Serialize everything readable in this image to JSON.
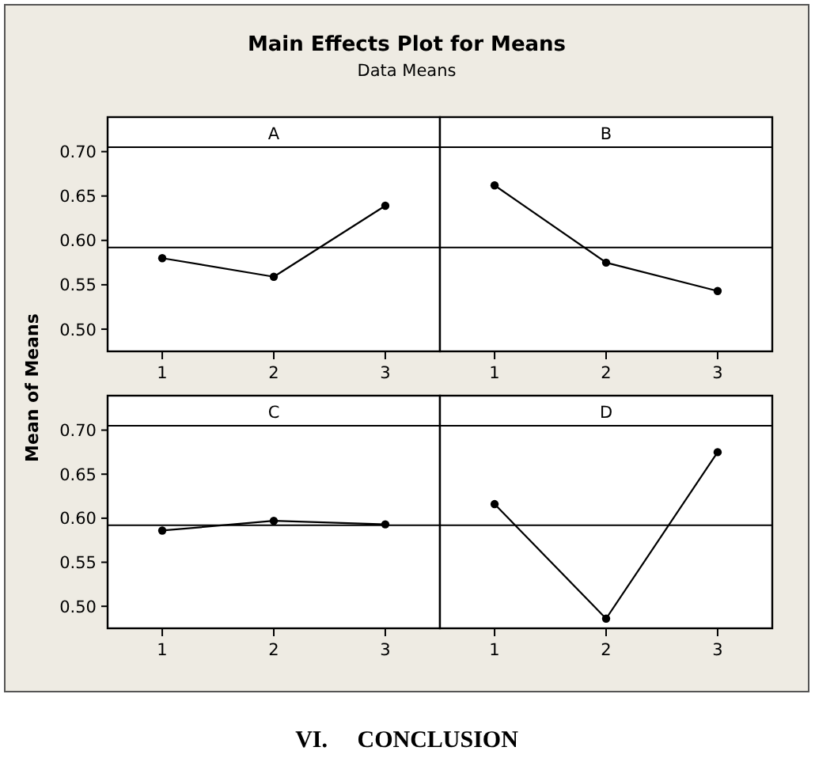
{
  "chart_data": [
    {
      "type": "other",
      "title": "Main Effects Plot for Means",
      "subtitle": "Data Means",
      "annotations": [
        "VI.     CONCLUSION"
      ]
    },
    {
      "type": "line",
      "title": "A",
      "ylabel": "Mean of Means",
      "categories": [
        "1",
        "2",
        "3"
      ],
      "values": [
        0.58,
        0.559,
        0.639
      ],
      "color": "#000000",
      "ylim": [
        0.475,
        0.705
      ],
      "yticks": [
        {
          "value": 0.5,
          "label": "0.50"
        },
        {
          "value": 0.55,
          "label": "0.55"
        },
        {
          "value": 0.6,
          "label": "0.60"
        },
        {
          "value": 0.65,
          "label": "0.65"
        },
        {
          "value": 0.7,
          "label": "0.70"
        }
      ],
      "ref_lines": [
        {
          "axis": "y",
          "value": 0.592,
          "color": "#000000"
        }
      ],
      "marker": "circle",
      "line_style": "solid"
    },
    {
      "type": "line",
      "title": "B",
      "categories": [
        "1",
        "2",
        "3"
      ],
      "values": [
        0.662,
        0.575,
        0.543
      ],
      "color": "#000000",
      "ylim": [
        0.475,
        0.705
      ],
      "ref_lines": [
        {
          "axis": "y",
          "value": 0.592,
          "color": "#000000"
        }
      ],
      "marker": "circle",
      "line_style": "solid",
      "tick_labels": "x"
    },
    {
      "type": "line",
      "title": "C",
      "categories": [
        "1",
        "2",
        "3"
      ],
      "values": [
        0.586,
        0.597,
        0.593
      ],
      "color": "#000000",
      "ylim": [
        0.475,
        0.705
      ],
      "yticks": [
        {
          "value": 0.5,
          "label": "0.50"
        },
        {
          "value": 0.55,
          "label": "0.55"
        },
        {
          "value": 0.6,
          "label": "0.60"
        },
        {
          "value": 0.65,
          "label": "0.65"
        },
        {
          "value": 0.7,
          "label": "0.70"
        }
      ],
      "ref_lines": [
        {
          "axis": "y",
          "value": 0.592,
          "color": "#000000"
        }
      ],
      "marker": "circle",
      "line_style": "solid"
    },
    {
      "type": "line",
      "title": "D",
      "categories": [
        "1",
        "2",
        "3"
      ],
      "values": [
        0.616,
        0.486,
        0.675
      ],
      "color": "#000000",
      "ylim": [
        0.475,
        0.705
      ],
      "ref_lines": [
        {
          "axis": "y",
          "value": 0.592,
          "color": "#000000"
        }
      ],
      "marker": "circle",
      "line_style": "solid",
      "tick_labels": "x"
    }
  ]
}
